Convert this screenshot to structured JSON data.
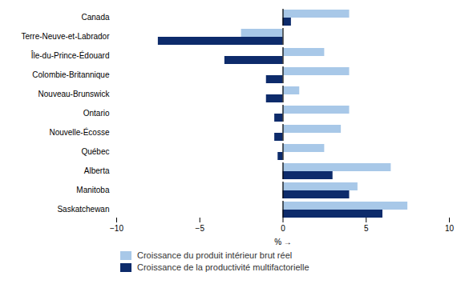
{
  "chart_data": {
    "type": "bar",
    "orientation": "horizontal",
    "categories": [
      "Canada",
      "Terre-Neuve-et-Labrador",
      "Île-du-Prince-Édouard",
      "Colombie-Britannique",
      "Nouveau-Brunswick",
      "Ontario",
      "Nouvelle-Écosse",
      "Québec",
      "Alberta",
      "Manitoba",
      "Saskatchewan"
    ],
    "series": [
      {
        "name": "Croissance du produit intérieur brut réel",
        "color": "#a8c8e8",
        "values": [
          4.0,
          -2.5,
          2.5,
          4.0,
          1.0,
          4.0,
          3.5,
          2.5,
          6.5,
          4.5,
          7.5
        ]
      },
      {
        "name": "Croissance de la productivité multifactorielle",
        "color": "#0d2b6b",
        "values": [
          0.5,
          -7.5,
          -3.5,
          -1.0,
          -1.0,
          -0.5,
          -0.5,
          -0.3,
          3.0,
          4.0,
          6.0
        ]
      }
    ],
    "xlabel": "%",
    "xlim": [
      -10,
      10
    ],
    "xticks": [
      -10,
      -5,
      0,
      5,
      10
    ],
    "grid": false,
    "legend": "bottom"
  }
}
